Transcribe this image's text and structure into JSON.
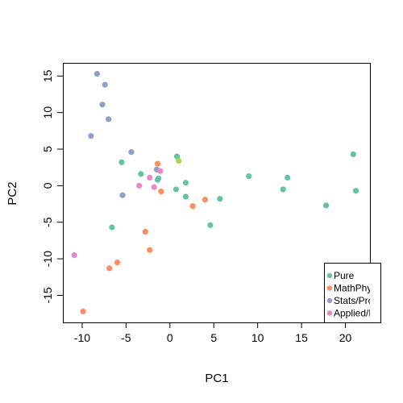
{
  "chart_data": {
    "type": "scatter",
    "xlabel": "PC1",
    "ylabel": "PC2",
    "xlim": [
      -12.2,
      22.8
    ],
    "ylim": [
      -18.7,
      16.8
    ],
    "x_ticks": [
      -10,
      -5,
      0,
      5,
      10,
      15,
      20
    ],
    "y_ticks": [
      -15,
      -10,
      -5,
      0,
      5,
      10,
      15
    ],
    "legend_position": "bottom-right",
    "series": [
      {
        "name": "Pure",
        "color": "#66c2a5",
        "points": [
          [
            -5.5,
            3.2
          ],
          [
            -3.3,
            1.6
          ],
          [
            -1.4,
            0.8
          ],
          [
            -1.3,
            1.0
          ],
          [
            0.8,
            4.0
          ],
          [
            0.7,
            -0.5
          ],
          [
            1.8,
            0.4
          ],
          [
            1.8,
            -1.5
          ],
          [
            5.7,
            -1.8
          ],
          [
            4.6,
            -5.4
          ],
          [
            -6.6,
            -5.7
          ],
          [
            9.0,
            1.3
          ],
          [
            12.9,
            -0.5
          ],
          [
            13.4,
            1.1
          ],
          [
            17.8,
            -2.7
          ],
          [
            20.9,
            4.3
          ],
          [
            21.2,
            -0.7
          ]
        ]
      },
      {
        "name": "MathPhys",
        "color": "#fc8d62",
        "points": [
          [
            -1.4,
            3.0
          ],
          [
            -1.0,
            -0.8
          ],
          [
            2.6,
            -2.8
          ],
          [
            4.0,
            -1.9
          ],
          [
            -2.8,
            -6.3
          ],
          [
            -2.3,
            -8.8
          ],
          [
            -6.0,
            -10.5
          ],
          [
            -6.9,
            -11.3
          ],
          [
            -9.9,
            -17.2
          ]
        ]
      },
      {
        "name": "Stats/Prob",
        "color": "#8da0cb",
        "points": [
          [
            -8.3,
            15.3
          ],
          [
            -7.4,
            13.8
          ],
          [
            -7.7,
            11.1
          ],
          [
            -7.0,
            9.1
          ],
          [
            -9.0,
            6.8
          ],
          [
            -4.4,
            4.6
          ],
          [
            -5.4,
            -1.3
          ],
          [
            -1.5,
            2.2
          ]
        ]
      },
      {
        "name": "Applied/Math",
        "color": "#e78ac3",
        "points": [
          [
            -3.5,
            0.0
          ],
          [
            -2.3,
            1.1
          ],
          [
            -1.8,
            -0.2
          ],
          [
            -1.1,
            2.0
          ],
          [
            -10.9,
            -9.5
          ]
        ]
      },
      {
        "color": "#a6d854",
        "points": [
          [
            1.0,
            3.4
          ]
        ]
      }
    ]
  }
}
